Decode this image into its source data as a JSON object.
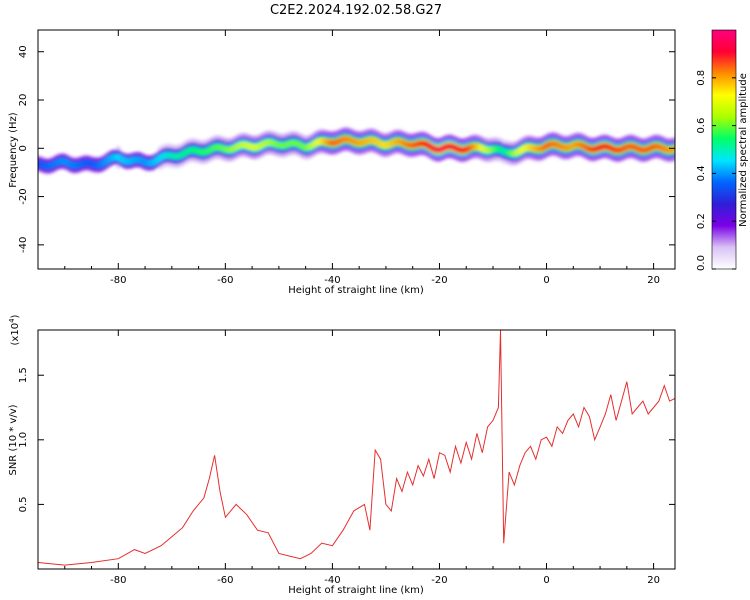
{
  "title": "C2E2.2024.192.02.58.G27",
  "chart_data": [
    {
      "type": "heatmap",
      "description_role": "spectrogram",
      "xlabel": "Height of straight line (km)",
      "ylabel": "Frequency (Hz)",
      "xlim": [
        -95,
        24
      ],
      "ylim": [
        -50,
        49
      ],
      "x_ticks": [
        -80,
        -60,
        -40,
        -20,
        0,
        20
      ],
      "x_tick_labels": [
        "-80",
        "-60",
        "-40",
        "-20",
        "0",
        "20"
      ],
      "y_ticks": [
        -40,
        -20,
        0,
        20,
        40
      ],
      "y_tick_labels": [
        "-40",
        "-20",
        "0",
        "20",
        "40"
      ],
      "colorbar": {
        "label": "Normalized spectral amplitude",
        "range": [
          0,
          1
        ],
        "ticks": [
          0.0,
          0.2,
          0.4,
          0.6,
          0.8
        ],
        "tick_labels": [
          "0.0",
          "0.2",
          "0.4",
          "0.6",
          "0.8"
        ],
        "colormap": [
          "#ffffff",
          "#d9c2f5",
          "#7a00e6",
          "#2f1fd6",
          "#0066ff",
          "#00e6ff",
          "#00ff66",
          "#aaff00",
          "#ffff00",
          "#ff8c00",
          "#ff0033",
          "#ff0080"
        ]
      },
      "ridge": {
        "x": [
          -95,
          -90,
          -85,
          -80,
          -75,
          -70,
          -65,
          -60,
          -55,
          -50,
          -45,
          -40,
          -35,
          -30,
          -25,
          -20,
          -15,
          -10,
          -8,
          -5,
          0,
          5,
          10,
          15,
          20,
          24
        ],
        "freq": [
          -7,
          -6,
          -7,
          -4,
          -6,
          -3,
          -1,
          0,
          1,
          2,
          1,
          3,
          3,
          2,
          2,
          0,
          0,
          0,
          -2,
          -1,
          1,
          1,
          0,
          0,
          0,
          0
        ],
        "amplitude": [
          0.35,
          0.4,
          0.35,
          0.45,
          0.4,
          0.5,
          0.55,
          0.6,
          0.7,
          0.6,
          0.6,
          0.85,
          0.8,
          0.75,
          0.85,
          0.95,
          0.9,
          0.6,
          0.5,
          0.7,
          0.85,
          0.8,
          0.9,
          0.85,
          0.85,
          0.8
        ]
      }
    },
    {
      "type": "line",
      "xlabel": "Height of straight line (km)",
      "ylabel": "SNR (10 * v/v)",
      "y_scale_label": "(x10",
      "y_scale_exponent": "4",
      "y_scale_close": ")",
      "xlim": [
        -95,
        24
      ],
      "ylim": [
        0,
        1.85
      ],
      "x_ticks": [
        -80,
        -60,
        -40,
        -20,
        0,
        20
      ],
      "x_tick_labels": [
        "-80",
        "-60",
        "-40",
        "-20",
        "0",
        "20"
      ],
      "y_ticks": [
        0.5,
        1.0,
        1.5
      ],
      "y_tick_labels": [
        "0.5",
        "1.0",
        "1.5"
      ],
      "series_color": "#e62e2e",
      "x": [
        -95,
        -90,
        -85,
        -80,
        -77,
        -75,
        -72,
        -70,
        -68,
        -66,
        -64,
        -63,
        -62,
        -61,
        -60,
        -58,
        -56,
        -54,
        -52,
        -50,
        -48,
        -46,
        -44,
        -42,
        -40,
        -38,
        -36,
        -34,
        -33,
        -32,
        -31,
        -30,
        -29,
        -28,
        -27,
        -26,
        -25,
        -24,
        -23,
        -22,
        -21,
        -20,
        -19,
        -18,
        -17,
        -16,
        -15,
        -14,
        -13,
        -12,
        -11,
        -10,
        -9,
        -8.6,
        -8,
        -7,
        -6,
        -5,
        -4,
        -3,
        -2,
        -1,
        0,
        1,
        2,
        3,
        4,
        5,
        6,
        7,
        8,
        9,
        10,
        11,
        12,
        13,
        14,
        15,
        16,
        17,
        18,
        19,
        20,
        21,
        22,
        23,
        24
      ],
      "y": [
        0.05,
        0.03,
        0.05,
        0.08,
        0.15,
        0.12,
        0.18,
        0.25,
        0.32,
        0.45,
        0.55,
        0.7,
        0.88,
        0.6,
        0.4,
        0.5,
        0.42,
        0.3,
        0.28,
        0.12,
        0.1,
        0.08,
        0.12,
        0.2,
        0.18,
        0.3,
        0.45,
        0.5,
        0.3,
        0.92,
        0.85,
        0.5,
        0.45,
        0.7,
        0.6,
        0.75,
        0.65,
        0.8,
        0.72,
        0.85,
        0.7,
        0.9,
        0.88,
        0.75,
        0.95,
        0.82,
        0.98,
        0.85,
        1.05,
        0.9,
        1.1,
        1.15,
        1.25,
        1.85,
        0.2,
        0.75,
        0.65,
        0.8,
        0.9,
        0.95,
        0.85,
        1.0,
        1.02,
        0.95,
        1.1,
        1.05,
        1.15,
        1.2,
        1.1,
        1.25,
        1.18,
        1.0,
        1.1,
        1.2,
        1.35,
        1.15,
        1.3,
        1.45,
        1.2,
        1.25,
        1.3,
        1.2,
        1.25,
        1.3,
        1.42,
        1.3,
        1.32
      ]
    }
  ]
}
